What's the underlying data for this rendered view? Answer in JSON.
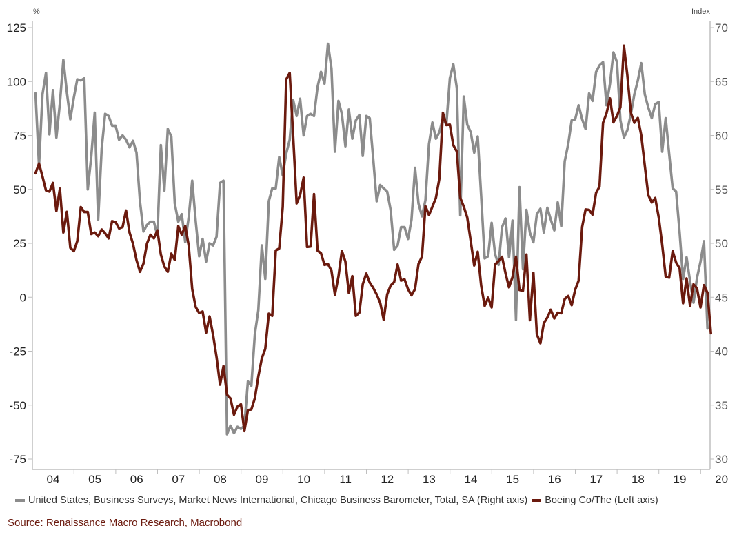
{
  "chart_data": {
    "type": "line",
    "left_unit": "%",
    "right_unit": "Index",
    "x_tick_labels": [
      "04",
      "05",
      "06",
      "07",
      "08",
      "09",
      "10",
      "11",
      "12",
      "13",
      "14",
      "15",
      "16",
      "17",
      "18",
      "19",
      "20"
    ],
    "left_axis": {
      "min": -75,
      "max": 125,
      "ticks": [
        "125",
        "100",
        "75",
        "50",
        "25",
        "0",
        "-25",
        "-50",
        "-75"
      ]
    },
    "right_axis": {
      "min": 30,
      "max": 70,
      "ticks": [
        "70",
        "65",
        "60",
        "55",
        "50",
        "45",
        "40",
        "35",
        "30"
      ]
    },
    "series": [
      {
        "name": "United States, Business Surveys, Market News International, Chicago Business Barometer, Total, SA (Right axis)",
        "axis": "right",
        "color": "#8c8c8c",
        "start_year": 2003.58,
        "step_years": 0.08333,
        "values": [
          63.9,
          57.2,
          63.8,
          65.8,
          60.1,
          64.2,
          59.8,
          63.0,
          67.0,
          64.0,
          61.5,
          63.5,
          65.2,
          65.1,
          65.3,
          55.0,
          58.0,
          62.1,
          52.2,
          58.8,
          62.0,
          61.8,
          60.9,
          60.9,
          59.6,
          60.0,
          59.6,
          58.9,
          59.5,
          58.4,
          53.9,
          51.1,
          51.7,
          52.0,
          52.0,
          50.7,
          59.1,
          54.9,
          60.6,
          59.9,
          53.7,
          52.0,
          52.7,
          50.1,
          52.4,
          55.8,
          52.1,
          48.8,
          50.4,
          48.3,
          50.0,
          49.8,
          50.6,
          55.6,
          55.8,
          32.3,
          33.1,
          32.4,
          33.0,
          32.8,
          33.1,
          37.2,
          36.8,
          41.6,
          43.8,
          49.8,
          46.7,
          53.9,
          55.1,
          55.1,
          58.0,
          56.3,
          58.3,
          59.6,
          63.3,
          61.8,
          63.4,
          60.0,
          61.8,
          62.0,
          61.8,
          64.5,
          65.9,
          64.8,
          68.5,
          66.2,
          58.5,
          63.2,
          62.0,
          59.0,
          62.4,
          59.7,
          61.4,
          61.9,
          58.1,
          61.8,
          61.6,
          57.8,
          53.9,
          55.4,
          55.1,
          54.8,
          53.1,
          49.4,
          49.8,
          51.5,
          51.5,
          50.4,
          52.2,
          57.0,
          53.7,
          52.5,
          54.0,
          59.2,
          61.2,
          59.7,
          60.3,
          61.6,
          61.0,
          65.3,
          66.6,
          64.4,
          52.6,
          63.6,
          61.0,
          60.3,
          58.4,
          59.9,
          54.4,
          48.6,
          48.8,
          51.9,
          49.0,
          48.0,
          51.5,
          52.3,
          48.7,
          52.1,
          42.9,
          55.2,
          47.6,
          53.1,
          51.0,
          50.1,
          52.7,
          53.2,
          51.0,
          53.3,
          52.2,
          51.2,
          53.8,
          51.6,
          57.6,
          59.2,
          61.4,
          61.5,
          62.8,
          61.5,
          60.6,
          63.9,
          63.2,
          65.9,
          66.5,
          66.8,
          62.8,
          64.8,
          67.7,
          66.8,
          61.4,
          59.8,
          60.5,
          62.0,
          63.8,
          65.1,
          66.7,
          63.8,
          62.6,
          61.6,
          62.9,
          63.1,
          58.5,
          61.6,
          58.3,
          55.1,
          54.8,
          51.0,
          46.7,
          48.7,
          46.5,
          44.5,
          46.8,
          48.3,
          50.2,
          42.1
        ]
      },
      {
        "name": "Boeing Co/The (Left axis)",
        "axis": "left",
        "color": "#6b1a0e",
        "start_year": 2003.58,
        "step_years": 0.08333,
        "values": [
          57.5,
          62.0,
          56.0,
          49.5,
          49.0,
          53.0,
          40.0,
          50.3,
          30.0,
          39.6,
          22.9,
          21.4,
          26.0,
          41.8,
          39.5,
          39.5,
          29.3,
          30.0,
          28.3,
          31.4,
          29.6,
          27.3,
          35.3,
          34.8,
          31.9,
          32.5,
          40.2,
          30.0,
          24.8,
          17.2,
          11.8,
          15.6,
          24.8,
          29.0,
          27.3,
          31.0,
          19.8,
          14.2,
          11.8,
          20.2,
          17.3,
          33.0,
          29.0,
          33.0,
          24.0,
          3.8,
          -4.5,
          -7.3,
          -6.6,
          -16.4,
          -8.9,
          -17.5,
          -27.7,
          -40.5,
          -31.9,
          -45.2,
          -46.9,
          -54.4,
          -50.7,
          -49.6,
          -62.0,
          -52.3,
          -52.0,
          -46.8,
          -36.7,
          -28.3,
          -23.9,
          -7.6,
          -8.6,
          21.7,
          22.6,
          41.8,
          100.9,
          104.0,
          75.0,
          43.5,
          47.4,
          55.4,
          23.3,
          23.5,
          47.8,
          21.6,
          20.4,
          15.0,
          15.4,
          12.3,
          1.2,
          9.5,
          21.5,
          16.5,
          2.0,
          9.8,
          -8.6,
          -7.2,
          6.1,
          11.0,
          6.8,
          4.3,
          1.3,
          -2.6,
          -10.4,
          1.3,
          5.4,
          7.0,
          15.2,
          7.7,
          8.3,
          3.7,
          0.9,
          3.8,
          15.4,
          18.8,
          42.2,
          38.1,
          42.0,
          46.1,
          55.0,
          85.5,
          79.8,
          80.0,
          70.5,
          67.6,
          46.1,
          42.0,
          37.0,
          26.0,
          14.7,
          21.1,
          5.4,
          -4.0,
          -0.2,
          -4.7,
          15.2,
          16.8,
          18.7,
          11.0,
          4.6,
          9.4,
          18.8,
          3.4,
          3.0,
          19.8,
          -10.6,
          11.3,
          -17.2,
          -21.3,
          -12.0,
          -9.4,
          -5.8,
          -9.8,
          -7.1,
          -7.4,
          -0.8,
          0.6,
          -3.7,
          3.5,
          7.7,
          32.6,
          40.7,
          40.5,
          38.3,
          48.4,
          51.3,
          80.9,
          85.2,
          92.2,
          81.1,
          84.0,
          88.1,
          116.6,
          102.8,
          85.4,
          80.9,
          83.1,
          75.0,
          60.9,
          47.4,
          43.9,
          46.0,
          37.0,
          24.4,
          9.5,
          9.1,
          21.4,
          16.1,
          13.4,
          -2.8,
          8.7,
          -4.0,
          6.0,
          4.1,
          -4.7,
          5.6,
          2.1,
          -16.7
        ]
      }
    ]
  },
  "legend": {
    "series1_label": "United States, Business Surveys, Market News International, Chicago Business Barometer, Total, SA (Right axis)",
    "series2_label": "Boeing Co/The (Left axis)"
  },
  "source": "Source: Renaissance Macro Research, Macrobond"
}
